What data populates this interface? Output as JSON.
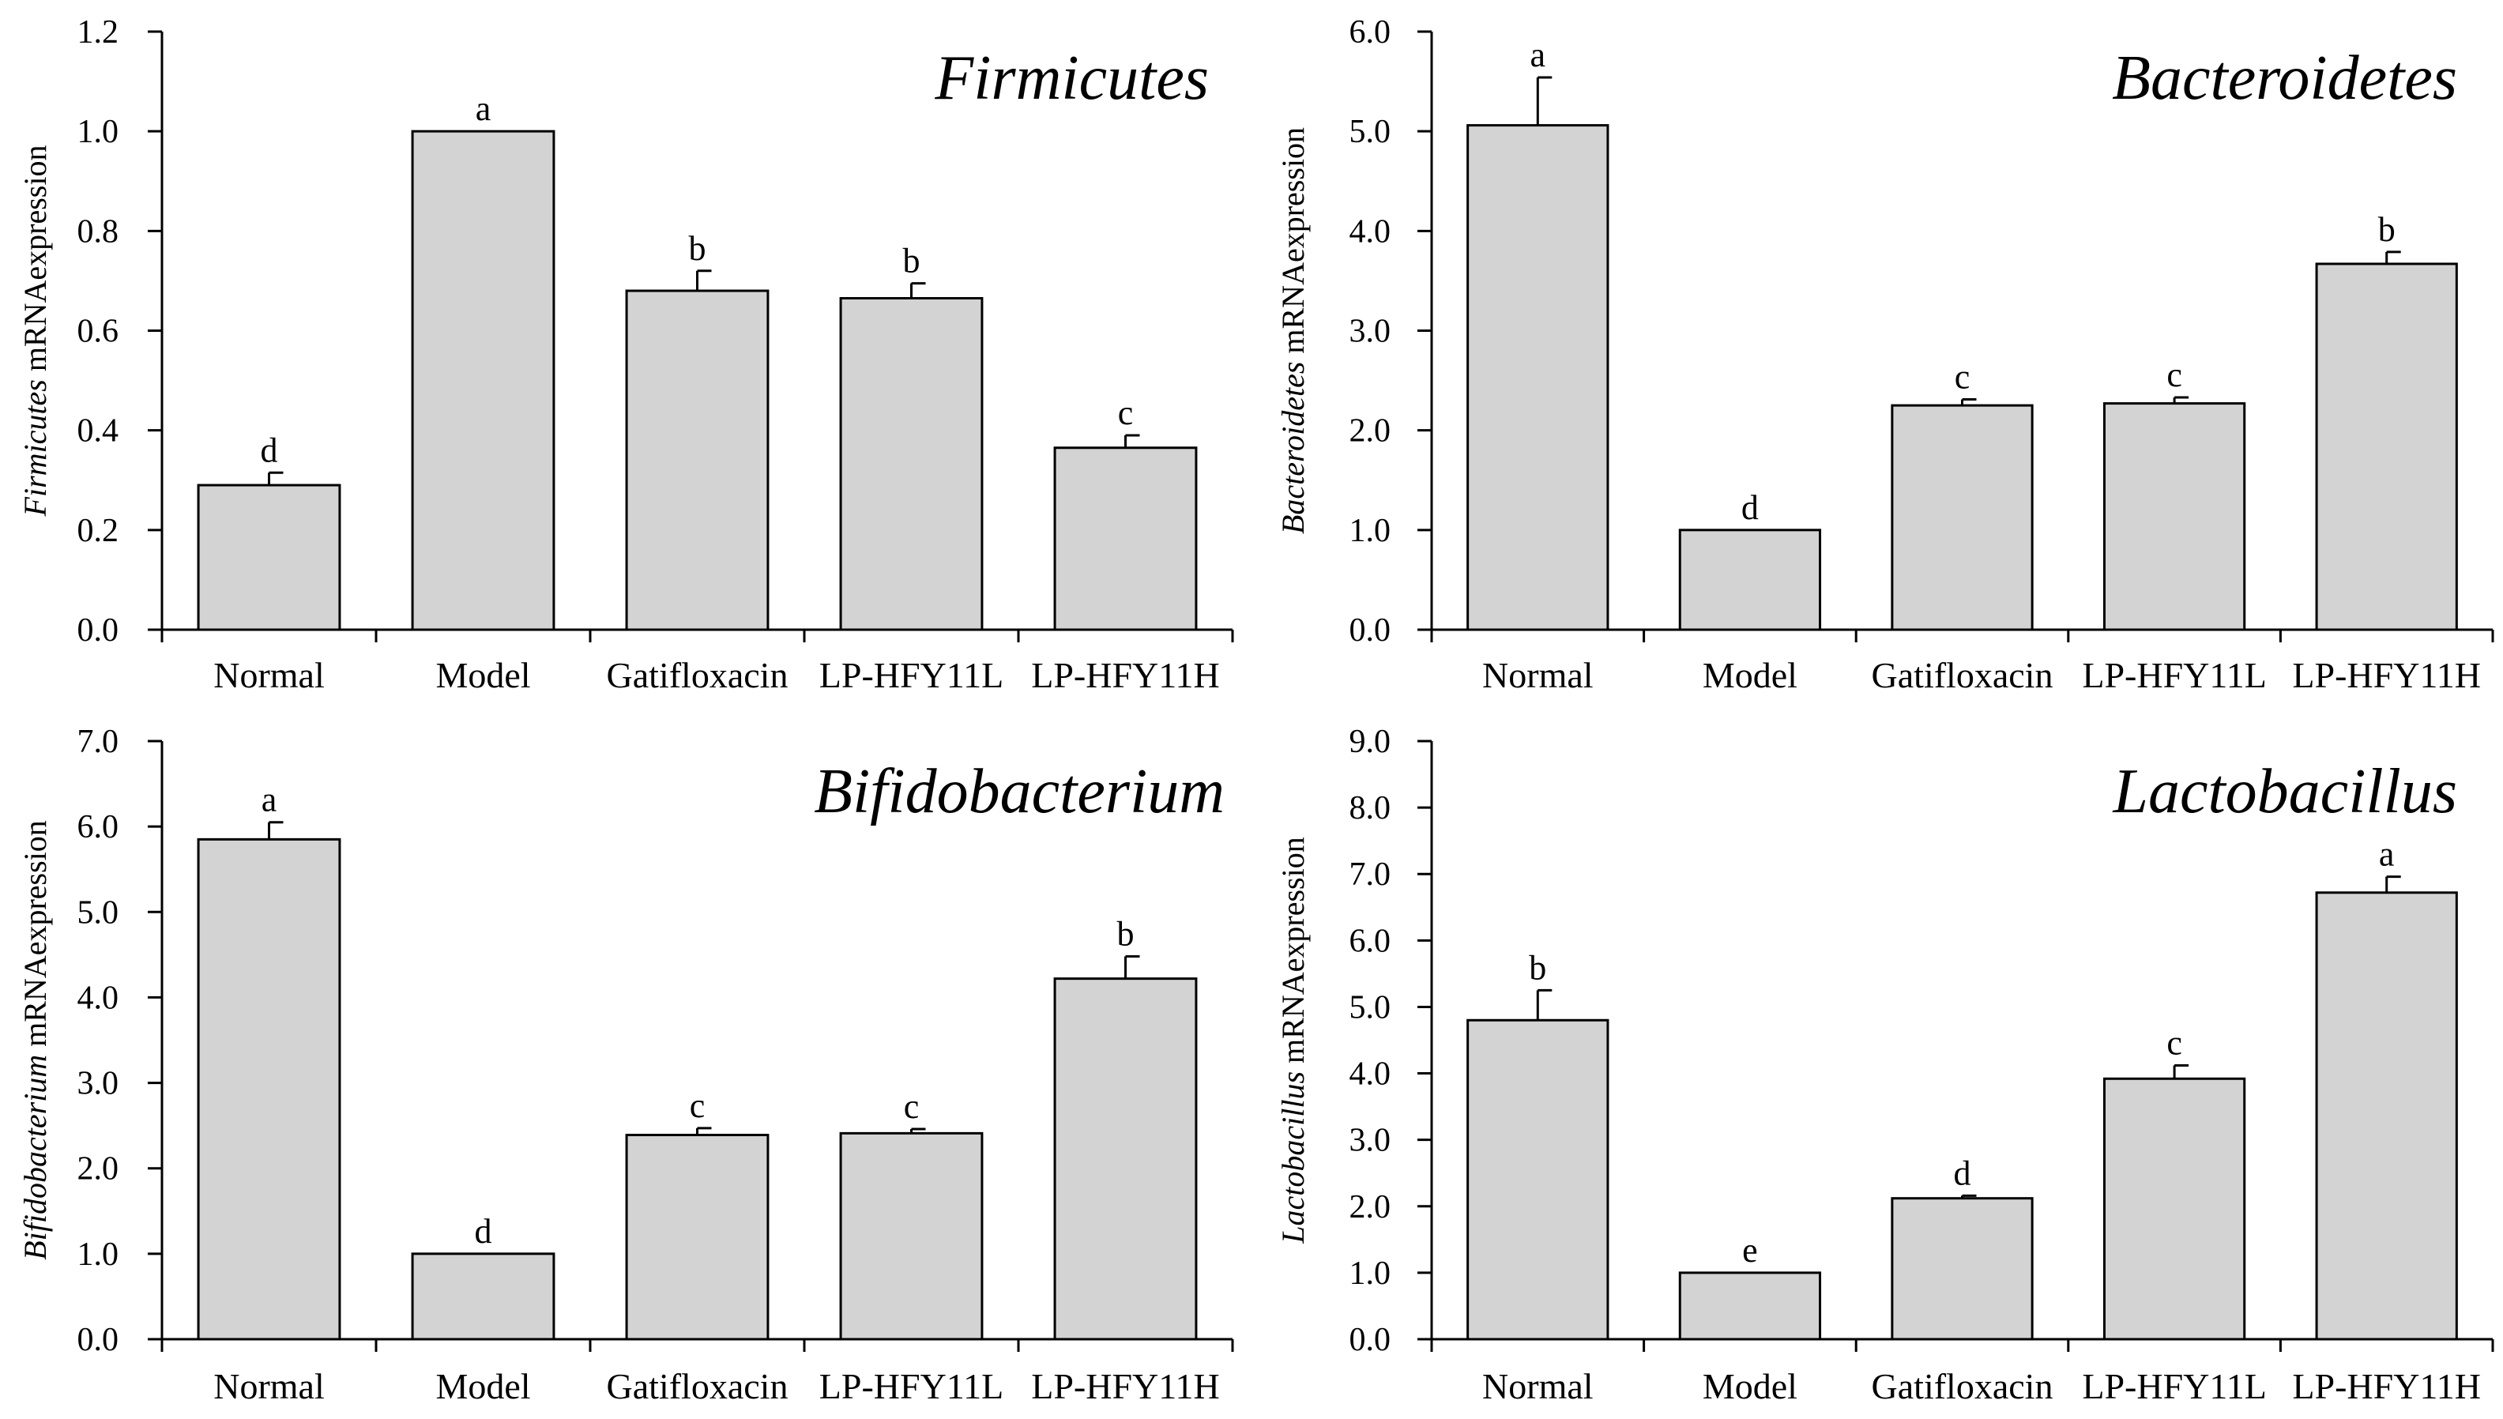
{
  "chart_data": [
    {
      "type": "bar",
      "title": "Firmicutes",
      "ylabel_italic": "Firmicutes",
      "ylabel_rest": " mRNAexpression",
      "categories": [
        "Normal",
        "Model",
        "Gatifloxacin",
        "LP-HFY11L",
        "LP-HFY11H"
      ],
      "values": [
        0.29,
        1.0,
        0.68,
        0.665,
        0.365
      ],
      "errors": [
        0.025,
        0.0,
        0.04,
        0.03,
        0.025
      ],
      "letters": [
        "d",
        "a",
        "b",
        "b",
        "c"
      ],
      "ylim": [
        0,
        1.2
      ],
      "yticks": [
        0.0,
        0.2,
        0.4,
        0.6,
        0.8,
        1.0,
        1.2
      ],
      "ytick_labels": [
        "0.0",
        "0.2",
        "0.4",
        "0.6",
        "0.8",
        "1.0",
        "1.2"
      ]
    },
    {
      "type": "bar",
      "title": "Bacteroidetes",
      "ylabel_italic": "Bacteroidetes",
      "ylabel_rest": " mRNAexpression",
      "categories": [
        "Normal",
        "Model",
        "Gatifloxacin",
        "LP-HFY11L",
        "LP-HFY11H"
      ],
      "values": [
        5.06,
        1.0,
        2.25,
        2.27,
        3.67
      ],
      "errors": [
        0.48,
        0.0,
        0.06,
        0.06,
        0.12
      ],
      "letters": [
        "a",
        "d",
        "c",
        "c",
        "b"
      ],
      "ylim": [
        0,
        6.0
      ],
      "yticks": [
        0.0,
        1.0,
        2.0,
        3.0,
        4.0,
        5.0,
        6.0
      ],
      "ytick_labels": [
        "0.0",
        "1.0",
        "2.0",
        "3.0",
        "4.0",
        "5.0",
        "6.0"
      ]
    },
    {
      "type": "bar",
      "title": "Bifidobacterium",
      "ylabel_italic": "Bifidobacterium",
      "ylabel_rest": " mRNAexpression",
      "categories": [
        "Normal",
        "Model",
        "Gatifloxacin",
        "LP-HFY11L",
        "LP-HFY11H"
      ],
      "values": [
        5.85,
        1.0,
        2.39,
        2.41,
        4.22
      ],
      "errors": [
        0.2,
        0.0,
        0.08,
        0.05,
        0.26
      ],
      "letters": [
        "a",
        "d",
        "c",
        "c",
        "b"
      ],
      "ylim": [
        0,
        7.0
      ],
      "yticks": [
        0.0,
        1.0,
        2.0,
        3.0,
        4.0,
        5.0,
        6.0,
        7.0
      ],
      "ytick_labels": [
        "0.0",
        "1.0",
        "2.0",
        "3.0",
        "4.0",
        "5.0",
        "6.0",
        "7.0"
      ]
    },
    {
      "type": "bar",
      "title": "Lactobacillus",
      "ylabel_italic": "Lactobacillus",
      "ylabel_rest": " mRNAexpression",
      "categories": [
        "Normal",
        "Model",
        "Gatifloxacin",
        "LP-HFY11L",
        "LP-HFY11H"
      ],
      "values": [
        4.8,
        1.0,
        2.12,
        3.92,
        6.72
      ],
      "errors": [
        0.45,
        0.0,
        0.04,
        0.2,
        0.24
      ],
      "letters": [
        "b",
        "e",
        "d",
        "c",
        "a"
      ],
      "ylim": [
        0,
        9.0
      ],
      "yticks": [
        0.0,
        1.0,
        2.0,
        3.0,
        4.0,
        5.0,
        6.0,
        7.0,
        8.0,
        9.0
      ],
      "ytick_labels": [
        "0.0",
        "1.0",
        "2.0",
        "3.0",
        "4.0",
        "5.0",
        "6.0",
        "7.0",
        "8.0",
        "9.0"
      ]
    }
  ]
}
